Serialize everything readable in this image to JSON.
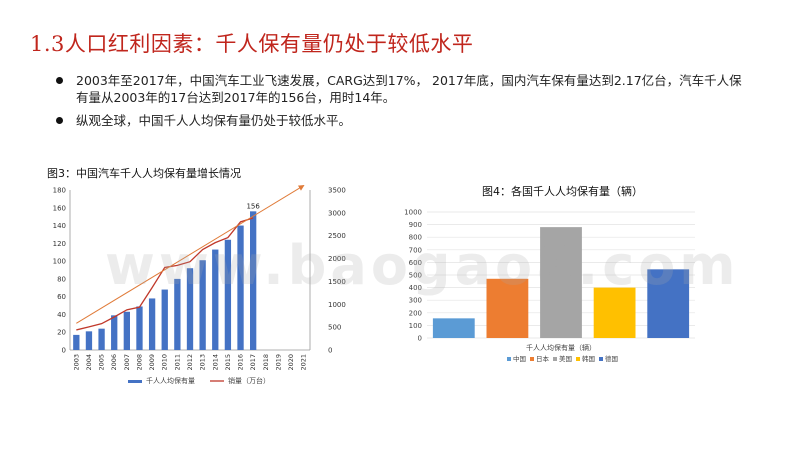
{
  "title": "1.3人口红利因素：千人保有量仍处于较低水平",
  "bullets": [
    "2003年至2017年，中国汽车工业飞速发展，CARG达到17%，  2017年底，国内汽车保有量达到2.17亿台，汽车千人保有量从2003年的17台达到2017年的156台，用时14年。",
    "纵观全球，中国千人人均保有量仍处于较低水平。"
  ],
  "watermark": "www.baogao8.com",
  "chart_data": [
    {
      "type": "bar+line",
      "title": "图3：中国汽车千人人均保有量增长情况",
      "categories": [
        "2003",
        "2004",
        "2005",
        "2006",
        "2007",
        "2008",
        "2009",
        "2010",
        "2011",
        "2012",
        "2013",
        "2014",
        "2015",
        "2016",
        "2017",
        "2018",
        "2019",
        "2020",
        "2021"
      ],
      "series": [
        {
          "name": "千人人均保有量",
          "type": "bar",
          "axis": "left",
          "color": "#4472c4",
          "values": [
            17,
            21,
            24,
            39,
            43,
            49,
            58,
            68,
            80,
            92,
            101,
            113,
            124,
            140,
            156,
            null,
            null,
            null,
            null
          ]
        },
        {
          "name": "销量（万台）",
          "type": "line",
          "axis": "right",
          "color": "#c0392b",
          "values": [
            439,
            507,
            576,
            722,
            879,
            938,
            1364,
            1806,
            1851,
            1931,
            2198,
            2349,
            2460,
            2803,
            2888,
            null,
            null,
            null,
            null
          ]
        }
      ],
      "trend": {
        "color": "#e07b39",
        "from": [
          "2003",
          30
        ],
        "to": [
          "2021",
          185
        ]
      },
      "annotation": {
        "category": "2017",
        "text": "156"
      },
      "ylim_left": [
        0,
        180
      ],
      "yticks_left": [
        0,
        20,
        40,
        60,
        80,
        100,
        120,
        140,
        160,
        180
      ],
      "ylim_right": [
        0,
        3500
      ],
      "yticks_right": [
        0,
        500,
        1000,
        1500,
        2000,
        2500,
        3000,
        3500
      ],
      "legend": "bottom"
    },
    {
      "type": "bar",
      "title": "图4：各国千人人均保有量（辆）",
      "xlabel": "千人人均保有量（辆）",
      "categories": [
        "中国",
        "日本",
        "美国",
        "韩国",
        "德国"
      ],
      "values": [
        156,
        470,
        880,
        400,
        545
      ],
      "colors": [
        "#5b9bd5",
        "#ed7d31",
        "#a5a5a5",
        "#ffc000",
        "#4472c4"
      ],
      "ylim": [
        0,
        1000
      ],
      "yticks": [
        0,
        100,
        200,
        300,
        400,
        500,
        600,
        700,
        800,
        900,
        1000
      ],
      "grid": true,
      "legend": "bottom"
    }
  ]
}
